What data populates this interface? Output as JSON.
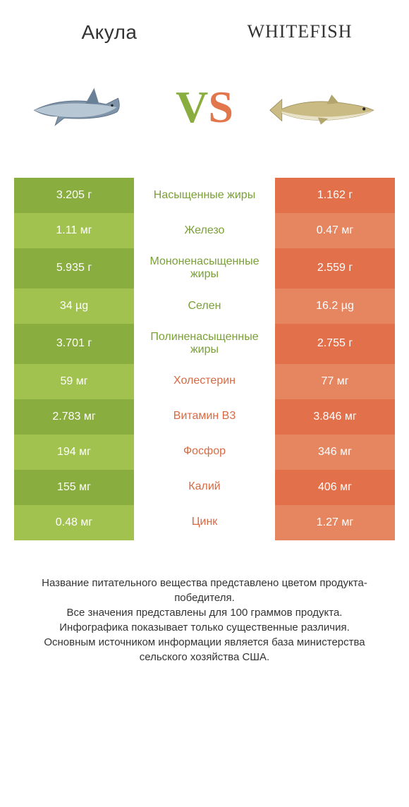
{
  "header": {
    "left": "Акула",
    "right": "WHITEFISH"
  },
  "colors": {
    "left_dark": "#8aad3f",
    "left_light": "#a2c24f",
    "right_dark": "#e2704a",
    "right_light": "#e68660",
    "mid_green": "#7aa037",
    "mid_orange": "#d86a43",
    "background": "#ffffff",
    "text": "#333333"
  },
  "vs": {
    "v": "V",
    "s": "S"
  },
  "rows": [
    {
      "left": "3.205 г",
      "label": "Насыщенные жиры",
      "right": "1.162 г",
      "winner": "left"
    },
    {
      "left": "1.11 мг",
      "label": "Железо",
      "right": "0.47 мг",
      "winner": "left"
    },
    {
      "left": "5.935 г",
      "label": "Мононенасыщенные жиры",
      "right": "2.559 г",
      "winner": "left"
    },
    {
      "left": "34 µg",
      "label": "Селен",
      "right": "16.2 µg",
      "winner": "left"
    },
    {
      "left": "3.701 г",
      "label": "Полиненасыщенные жиры",
      "right": "2.755 г",
      "winner": "left"
    },
    {
      "left": "59 мг",
      "label": "Холестерин",
      "right": "77 мг",
      "winner": "right"
    },
    {
      "left": "2.783 мг",
      "label": "Витамин B3",
      "right": "3.846 мг",
      "winner": "right"
    },
    {
      "left": "194 мг",
      "label": "Фосфор",
      "right": "346 мг",
      "winner": "right"
    },
    {
      "left": "155 мг",
      "label": "Калий",
      "right": "406 мг",
      "winner": "right"
    },
    {
      "left": "0.48 мг",
      "label": "Цинк",
      "right": "1.27 мг",
      "winner": "right"
    }
  ],
  "footer_lines": [
    "Название питательного вещества представлено цветом продукта-победителя.",
    "Все значения представлены для 100 граммов продукта.",
    "Инфографика показывает только существенные различия.",
    "Основным источником информации является база министерства сельского хозяйства США."
  ]
}
